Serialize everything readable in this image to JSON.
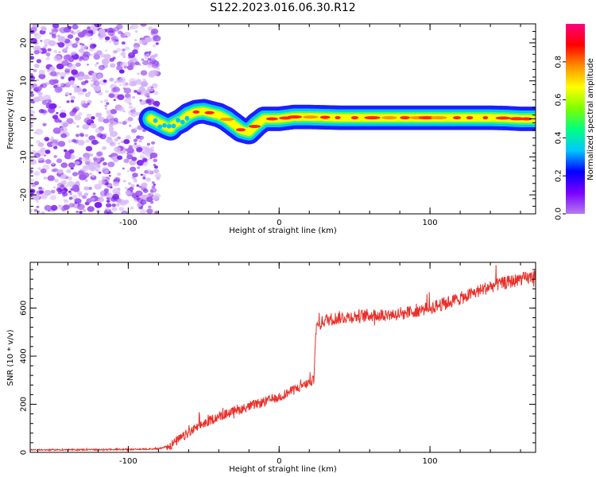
{
  "figure": {
    "title": "S122.2023.016.06.30.R12"
  },
  "chart_data": [
    {
      "type": "heatmap",
      "name": "spectrogram",
      "xlabel": "Height of straight line (km)",
      "ylabel": "Frequency (Hz)",
      "xlim": [
        -165,
        170
      ],
      "ylim": [
        -25,
        25
      ],
      "xticks": [
        -100,
        0,
        100
      ],
      "yticks": [
        20,
        10,
        0,
        -10,
        -20
      ],
      "noise_region_x": [
        -165,
        -80
      ],
      "ridge": {
        "x": [
          -85,
          -80,
          -75,
          -72,
          -70,
          -65,
          -60,
          -55,
          -50,
          -45,
          -40,
          -35,
          -30,
          -25,
          -20,
          -15,
          -10,
          -5,
          0,
          10,
          20,
          40,
          60,
          80,
          100,
          120,
          140,
          150,
          160,
          170
        ],
        "freq": [
          0,
          -1,
          -2,
          -2.5,
          -1.5,
          -0.5,
          1,
          1.8,
          2,
          1.5,
          1,
          0,
          -1.5,
          -3,
          -3.5,
          -1.5,
          0,
          0,
          0,
          0.5,
          0.5,
          0.3,
          0.3,
          0.3,
          0.3,
          0.3,
          0.3,
          0.2,
          0,
          0
        ]
      },
      "colorbar": {
        "label": "Normalized spectral amplitude",
        "range": [
          0,
          1
        ],
        "ticks": [
          "0.0",
          "0.2",
          "0.4",
          "0.6",
          "0.8"
        ],
        "stops": [
          "#b47cf0",
          "#7a00ff",
          "#0000ff",
          "#00c8ff",
          "#00ff80",
          "#80ff00",
          "#ffff00",
          "#ff9000",
          "#ff0000",
          "#ff0080"
        ]
      }
    },
    {
      "type": "line",
      "name": "snr",
      "xlabel": "Height of straight line (km)",
      "ylabel": "SNR (10 * v/v)",
      "xlim": [
        -165,
        170
      ],
      "ylim": [
        0,
        790
      ],
      "xticks": [
        -100,
        0,
        100
      ],
      "yticks": [
        0,
        200,
        400,
        600
      ],
      "color": "#e8302a",
      "x": [
        -165,
        -100,
        -80,
        -72,
        -60,
        -50,
        -40,
        -30,
        -20,
        -10,
        0,
        10,
        20,
        23,
        24,
        25,
        30,
        40,
        60,
        80,
        100,
        120,
        140,
        160,
        170
      ],
      "y": [
        10,
        12,
        15,
        30,
        80,
        120,
        150,
        170,
        190,
        210,
        230,
        260,
        290,
        300,
        480,
        520,
        550,
        560,
        570,
        575,
        600,
        640,
        690,
        720,
        730
      ]
    }
  ]
}
